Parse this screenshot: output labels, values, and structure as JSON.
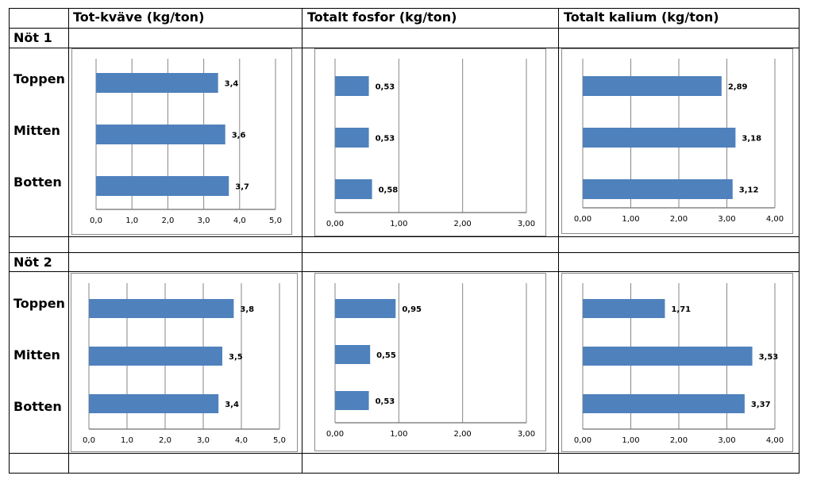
{
  "table": {
    "headers": [
      "Tot-kväve (kg/ton)",
      "Totalt fosfor (kg/ton)",
      "Totalt kalium (kg/ton)"
    ],
    "sections": [
      {
        "label": "Nöt 1",
        "rows": [
          "Toppen",
          "Mitten",
          "Botten"
        ]
      },
      {
        "label": "Nöt 2",
        "rows": [
          "Toppen",
          "Mitten",
          "Botten"
        ]
      }
    ]
  },
  "colors": {
    "bar": "#4f81bd",
    "grid": "#868686",
    "axis": "#868686"
  },
  "chart_data": [
    {
      "id": "not1-kvave",
      "type": "bar",
      "orientation": "horizontal",
      "section": "Nöt 1",
      "metric": "Tot-kväve (kg/ton)",
      "categories": [
        "Toppen",
        "Mitten",
        "Botten"
      ],
      "values": [
        3.4,
        3.6,
        3.7
      ],
      "labels": [
        "3,4",
        "3,6",
        "3,7"
      ],
      "xlim": [
        0,
        5
      ],
      "ticks": [
        "0,0",
        "1,0",
        "2,0",
        "3,0",
        "4,0",
        "5,0"
      ],
      "grid": true
    },
    {
      "id": "not1-fosfor",
      "type": "bar",
      "orientation": "horizontal",
      "section": "Nöt 1",
      "metric": "Totalt fosfor (kg/ton)",
      "categories": [
        "Toppen",
        "Mitten",
        "Botten"
      ],
      "values": [
        0.53,
        0.53,
        0.58
      ],
      "labels": [
        "0,53",
        "0,53",
        "0,58"
      ],
      "xlim": [
        0,
        3
      ],
      "ticks": [
        "0,00",
        "1,00",
        "2,00",
        "3,00"
      ],
      "grid": true
    },
    {
      "id": "not1-kalium",
      "type": "bar",
      "orientation": "horizontal",
      "section": "Nöt 1",
      "metric": "Totalt kalium (kg/ton)",
      "categories": [
        "Toppen",
        "Mitten",
        "Botten"
      ],
      "values": [
        2.89,
        3.18,
        3.12
      ],
      "labels": [
        "2,89",
        "3,18",
        "3,12"
      ],
      "xlim": [
        0,
        4
      ],
      "ticks": [
        "0,00",
        "1,00",
        "2,00",
        "3,00",
        "4,00"
      ],
      "grid": true
    },
    {
      "id": "not2-kvave",
      "type": "bar",
      "orientation": "horizontal",
      "section": "Nöt 2",
      "metric": "Tot-kväve (kg/ton)",
      "categories": [
        "Toppen",
        "Mitten",
        "Botten"
      ],
      "values": [
        3.8,
        3.5,
        3.4
      ],
      "labels": [
        "3,8",
        "3,5",
        "3,4"
      ],
      "xlim": [
        0,
        5
      ],
      "ticks": [
        "0,0",
        "1,0",
        "2,0",
        "3,0",
        "4,0",
        "5,0"
      ],
      "grid": true
    },
    {
      "id": "not2-fosfor",
      "type": "bar",
      "orientation": "horizontal",
      "section": "Nöt 2",
      "metric": "Totalt fosfor (kg/ton)",
      "categories": [
        "Toppen",
        "Mitten",
        "Botten"
      ],
      "values": [
        0.95,
        0.55,
        0.53
      ],
      "labels": [
        "0,95",
        "0,55",
        "0,53"
      ],
      "xlim": [
        0,
        3
      ],
      "ticks": [
        "0,00",
        "1,00",
        "2,00",
        "3,00"
      ],
      "grid": true
    },
    {
      "id": "not2-kalium",
      "type": "bar",
      "orientation": "horizontal",
      "section": "Nöt 2",
      "metric": "Totalt kalium (kg/ton)",
      "categories": [
        "Toppen",
        "Mitten",
        "Botten"
      ],
      "values": [
        1.71,
        3.53,
        3.37
      ],
      "labels": [
        "1,71",
        "3,53",
        "3,37"
      ],
      "xlim": [
        0,
        4
      ],
      "ticks": [
        "0,00",
        "1,00",
        "2,00",
        "3,00",
        "4,00"
      ],
      "grid": true
    }
  ]
}
